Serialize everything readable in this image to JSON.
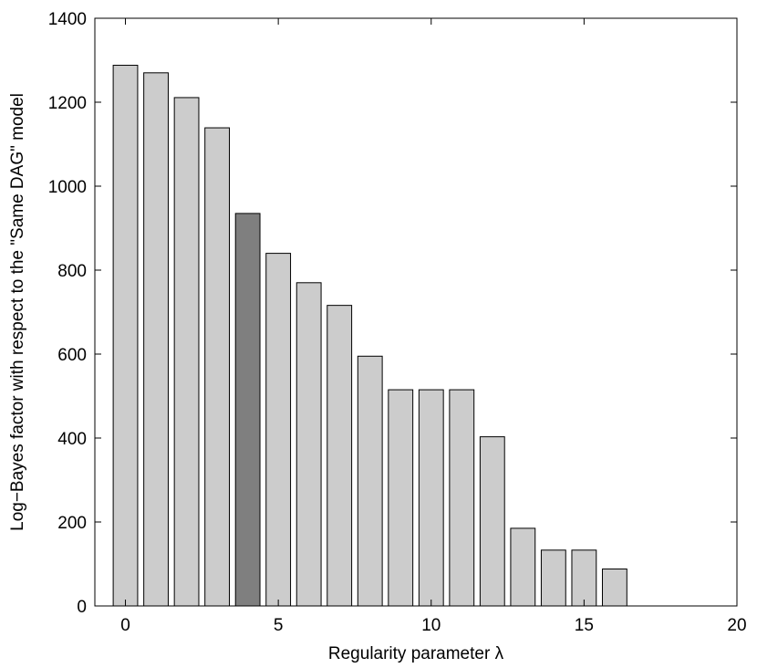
{
  "chart_data": {
    "type": "bar",
    "title": "",
    "xlabel": "Regularity parameter λ",
    "ylabel": "Log−Bayes factor with respect to the \"Same DAG\" model",
    "xlim": [
      -1,
      20
    ],
    "ylim": [
      0,
      1400
    ],
    "xticks": [
      0,
      5,
      10,
      15,
      20
    ],
    "yticks": [
      0,
      200,
      400,
      600,
      800,
      1000,
      1200,
      1400
    ],
    "x": [
      0,
      1,
      2,
      3,
      4,
      5,
      6,
      7,
      8,
      9,
      10,
      11,
      12,
      13,
      14,
      15,
      16
    ],
    "values": [
      1288,
      1270,
      1211,
      1139,
      935,
      840,
      770,
      716,
      595,
      515,
      515,
      515,
      403,
      185,
      133,
      133,
      88
    ],
    "highlight_index": 4,
    "colors": {
      "bar": "#cccccc",
      "highlight": "#7f7f7f",
      "edge": "#000000",
      "axis": "#000000"
    },
    "grid": false,
    "legend": "none"
  }
}
